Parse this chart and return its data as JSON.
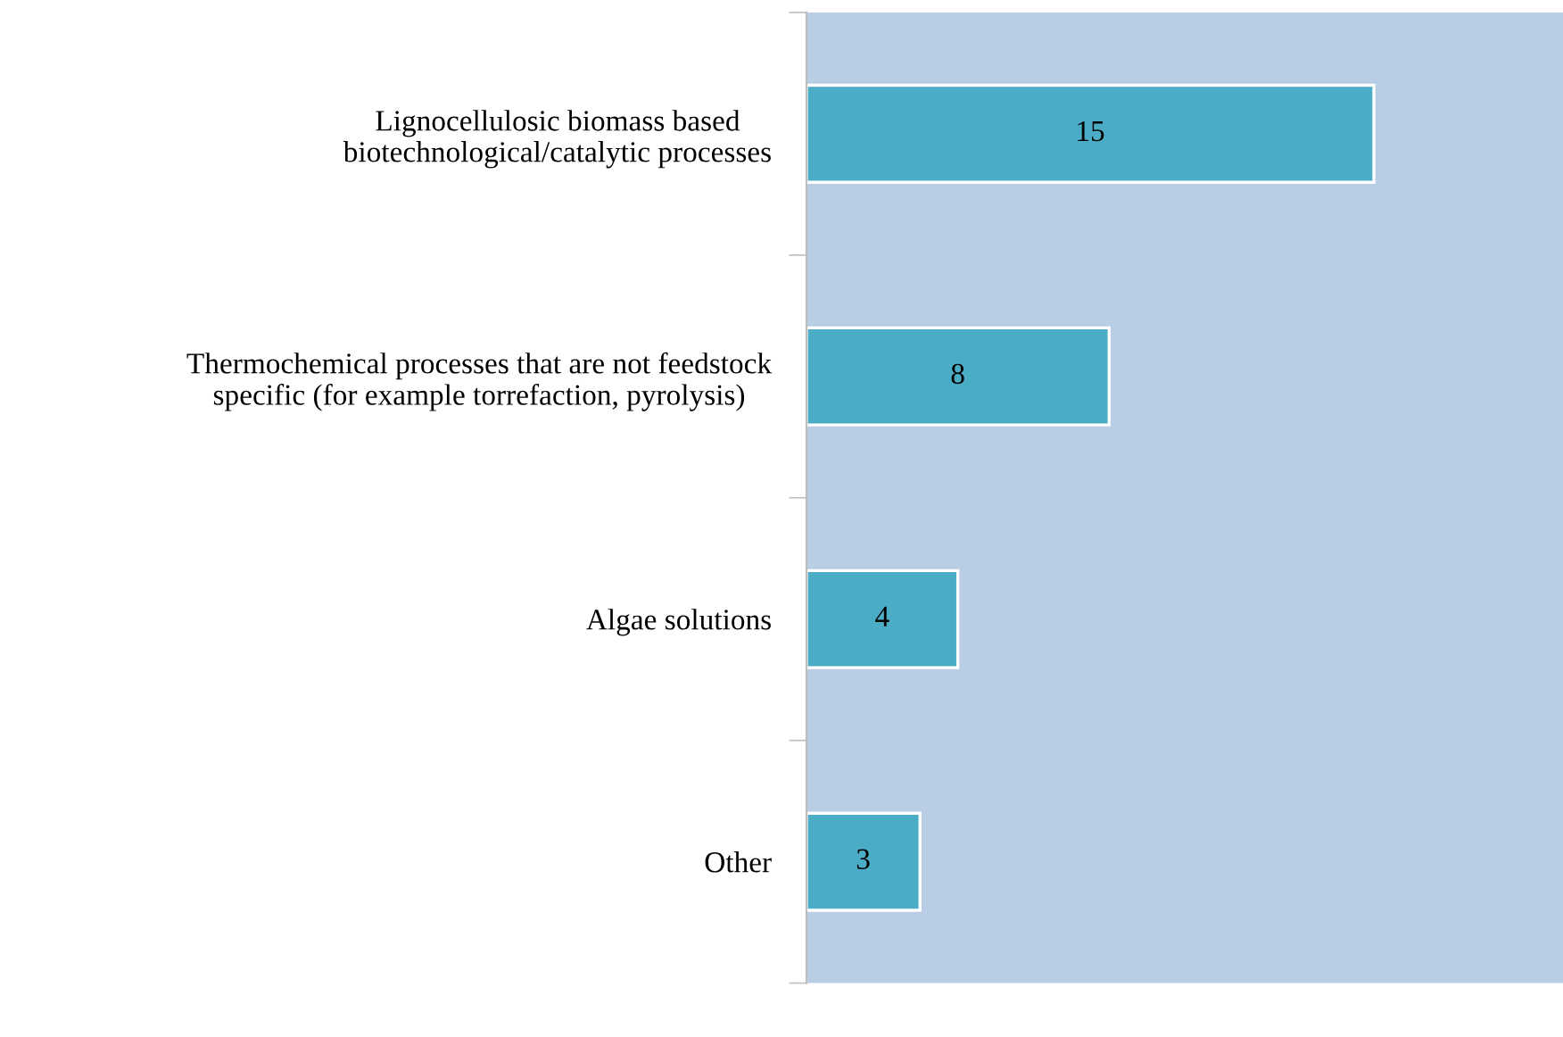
{
  "chart_data": {
    "type": "bar",
    "orientation": "horizontal",
    "categories": [
      "Lignocellulosic biomass based\nbiotechnological/catalytic processes",
      "Thermochemical processes that are not feedstock\nspecific (for example torrefaction, pyrolysis)",
      "Algae solutions",
      "Other"
    ],
    "values": [
      15,
      8,
      4,
      3
    ],
    "color": "#4bacc6",
    "data_labels": true,
    "xlim": [
      0,
      20
    ],
    "tick_labels": "y",
    "grid": false,
    "legend": false
  }
}
